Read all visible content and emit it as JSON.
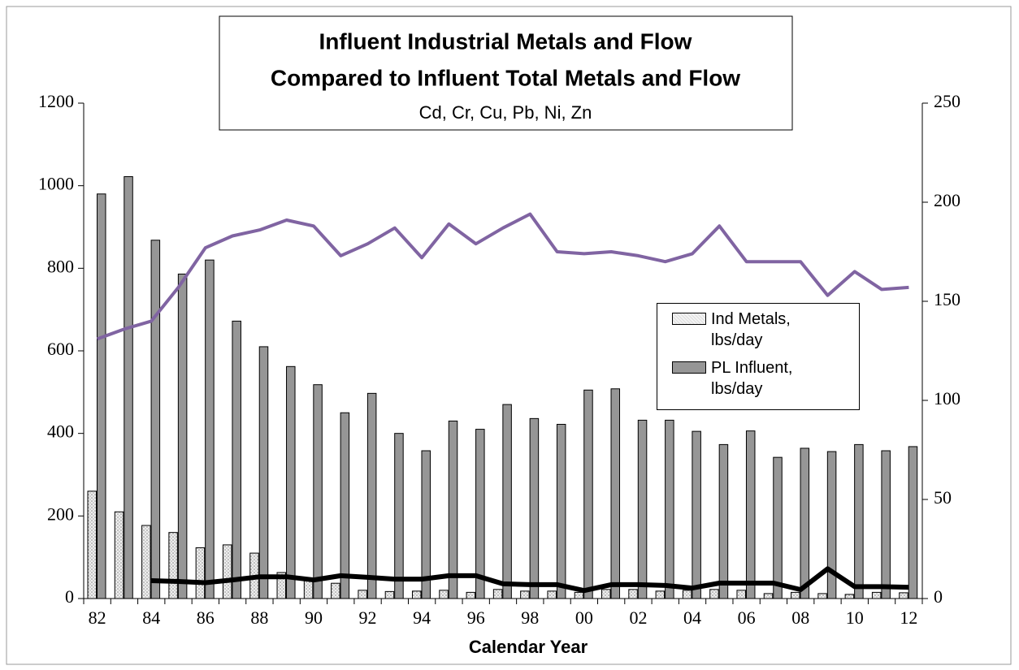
{
  "chart_data": {
    "type": "bar",
    "title": "Influent Industrial Metals and Flow",
    "title2": "Compared to Influent Total Metals and Flow",
    "subtitle": "Cd, Cr, Cu, Pb, Ni, Zn",
    "xlabel": "Calendar Year",
    "categories": [
      "82",
      null,
      "84",
      null,
      "86",
      null,
      "88",
      null,
      "90",
      null,
      "92",
      null,
      "94",
      null,
      "96",
      null,
      "98",
      null,
      "00",
      null,
      "02",
      null,
      "04",
      null,
      "06",
      null,
      "08",
      null,
      "10",
      null,
      "12"
    ],
    "ylim": [
      0,
      1200
    ],
    "yticks": [
      0,
      200,
      400,
      600,
      800,
      1000,
      1200
    ],
    "y2lim": [
      0,
      250
    ],
    "y2ticks": [
      0,
      50,
      100,
      150,
      200,
      250
    ],
    "legend": "right",
    "series": [
      {
        "name": "Ind Metals, lbs/day",
        "type": "bar",
        "color": "#e0e0e0",
        "values": [
          260,
          210,
          177,
          160,
          123,
          130,
          110,
          63,
          45,
          37,
          20,
          17,
          18,
          20,
          15,
          22,
          18,
          18,
          15,
          22,
          22,
          18,
          20,
          22,
          20,
          12,
          15,
          12,
          10,
          15,
          14
        ]
      },
      {
        "name": "PL Influent, lbs/day",
        "type": "bar",
        "color": "#969696",
        "values": [
          980,
          1022,
          868,
          786,
          820,
          672,
          610,
          562,
          518,
          450,
          497,
          400,
          358,
          430,
          410,
          470,
          436,
          422,
          505,
          508,
          432,
          432,
          405,
          373,
          406,
          342,
          364,
          356,
          373,
          358,
          368
        ]
      },
      {
        "type": "line",
        "axis": "y2",
        "color": "#8064a2",
        "values": [
          131,
          136,
          140,
          157,
          177,
          183,
          186,
          191,
          188,
          173,
          179,
          187,
          172,
          189,
          179,
          187,
          194,
          175,
          174,
          175,
          173,
          170,
          174,
          188,
          170,
          170,
          170,
          153,
          165,
          156,
          157
        ]
      },
      {
        "type": "line",
        "axis": "y2",
        "color": "#000000",
        "values": [
          null,
          null,
          9,
          8.6,
          8,
          9.4,
          11,
          11,
          9.4,
          11.5,
          10.7,
          9.8,
          9.8,
          11.5,
          11.5,
          7.4,
          7,
          7,
          4,
          7,
          7,
          6.6,
          5.3,
          7.8,
          7.8,
          7.8,
          4.5,
          15,
          6,
          6,
          5.7
        ]
      }
    ]
  }
}
